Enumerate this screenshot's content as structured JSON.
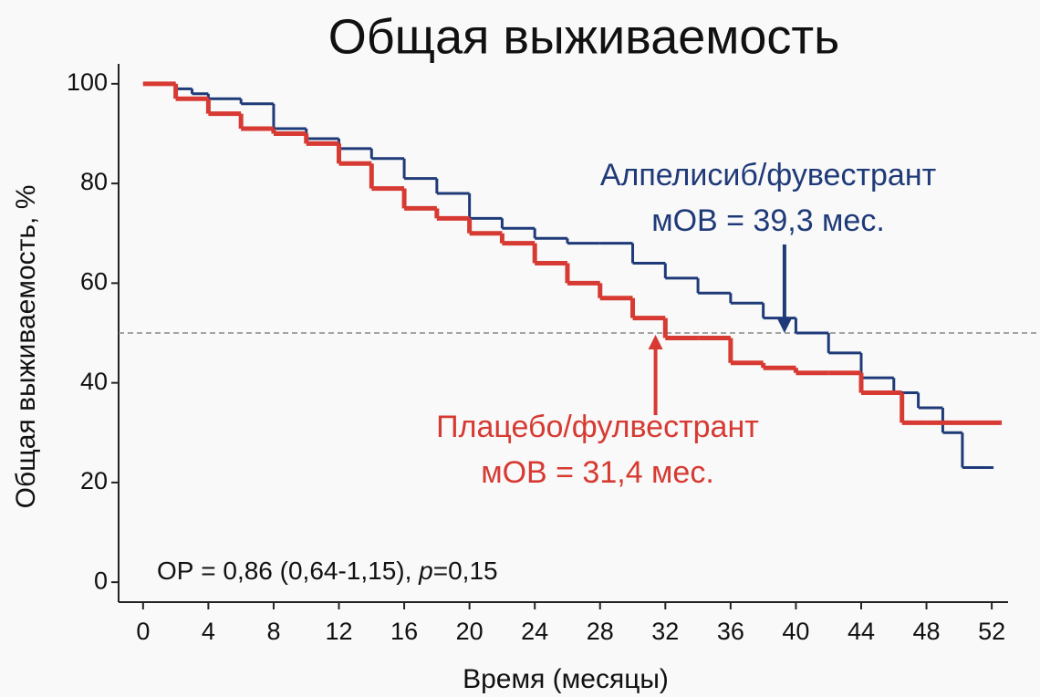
{
  "chart_data": {
    "type": "step",
    "title": "Общая выживаемость",
    "xlabel": "Время (месяцы)",
    "ylabel": "Общая выживаемость, %",
    "xlim": [
      -1.5,
      53
    ],
    "ylim": [
      -4,
      104
    ],
    "xticks": [
      0,
      4,
      8,
      12,
      16,
      20,
      24,
      28,
      32,
      36,
      40,
      44,
      48,
      52
    ],
    "yticks": [
      0,
      20,
      40,
      60,
      80,
      100
    ],
    "reference_line": 50,
    "series": [
      {
        "name": "Алпелисиб/фувестрант",
        "color": "#1f3a78",
        "x": [
          0,
          2,
          3,
          4,
          6,
          8,
          10,
          12,
          14,
          16,
          18,
          20,
          22,
          24,
          26,
          28,
          30,
          32,
          34,
          36,
          38,
          40,
          42,
          44,
          46,
          47.5,
          49,
          50.2,
          52
        ],
        "values": [
          100,
          99,
          98,
          97,
          96,
          91,
          89,
          87,
          85,
          81,
          78,
          73,
          71,
          69,
          68,
          68,
          64,
          61,
          58,
          56,
          53,
          50,
          46,
          41,
          38,
          35,
          30,
          23,
          23
        ]
      },
      {
        "name": "Плацебо/фулвестрант",
        "color": "#d63a32",
        "x": [
          0,
          2,
          4,
          6,
          8,
          10,
          12,
          14,
          16,
          18,
          20,
          22,
          24,
          26,
          28,
          30,
          32,
          34,
          36,
          38,
          40,
          42,
          44,
          46.5,
          48,
          52.5
        ],
        "values": [
          100,
          97,
          94,
          91,
          90,
          88,
          84,
          79,
          75,
          73,
          70,
          68,
          64,
          60,
          57,
          53,
          49,
          49,
          44,
          43,
          42,
          42,
          38,
          32,
          32,
          32
        ]
      }
    ],
    "annotations": [
      {
        "text": "Алпелисиб/фувестрант",
        "line2": "мОВ = 39,3 мес.",
        "x": 39.3,
        "y": 50
      },
      {
        "text": "Плацебо/фулвестрант",
        "line2": "мОВ = 31,4 мес.",
        "x": 31.4,
        "y": 50
      }
    ],
    "stats": {
      "prefix": "ОР = 0,86 (0,64-1,15), ",
      "p": "p",
      "suffix": "=0,15"
    }
  }
}
